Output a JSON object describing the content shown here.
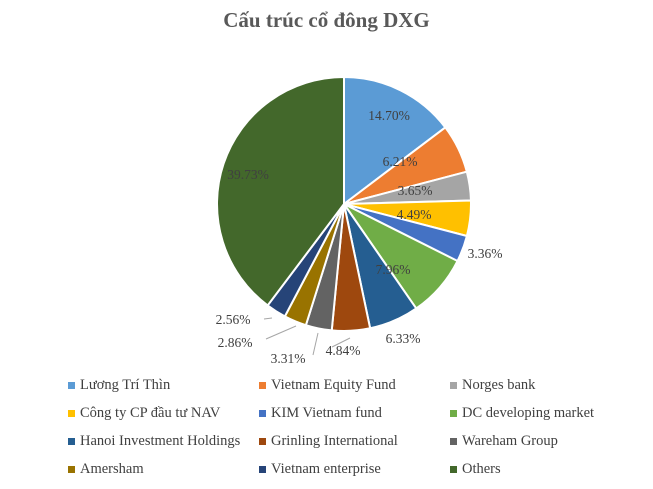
{
  "chart_data": {
    "type": "pie",
    "title": "Cấu trúc cổ đông DXG",
    "legend_position": "bottom",
    "series": [
      {
        "label": "Lương Trí Thìn",
        "value": 14.7,
        "display": "14.70%",
        "color": "#5B9BD5"
      },
      {
        "label": "Vietnam Equity Fund",
        "value": 6.21,
        "display": "6.21%",
        "color": "#ED7D31"
      },
      {
        "label": "Norges bank",
        "value": 3.65,
        "display": "3.65%",
        "color": "#A5A5A5"
      },
      {
        "label": "Công ty CP đầu tư NAV",
        "value": 4.49,
        "display": "4.49%",
        "color": "#FFC000"
      },
      {
        "label": "KIM Vietnam fund",
        "value": 3.36,
        "display": "3.36%",
        "color": "#4472C4"
      },
      {
        "label": "DC developing market",
        "value": 7.96,
        "display": "7.96%",
        "color": "#70AD47"
      },
      {
        "label": "Hanoi Investment Holdings",
        "value": 6.33,
        "display": "6.33%",
        "color": "#255E91"
      },
      {
        "label": "Grinling International",
        "value": 4.84,
        "display": "4.84%",
        "color": "#9E480E"
      },
      {
        "label": "Wareham Group",
        "value": 3.31,
        "display": "3.31%",
        "color": "#636363"
      },
      {
        "label": "Amersham",
        "value": 2.86,
        "display": "2.86%",
        "color": "#997300"
      },
      {
        "label": "Vietnam enterprise",
        "value": 2.56,
        "display": "2.56%",
        "color": "#264478"
      },
      {
        "label": "Others",
        "value": 39.73,
        "display": "39.73%",
        "color": "#43682B"
      }
    ]
  }
}
